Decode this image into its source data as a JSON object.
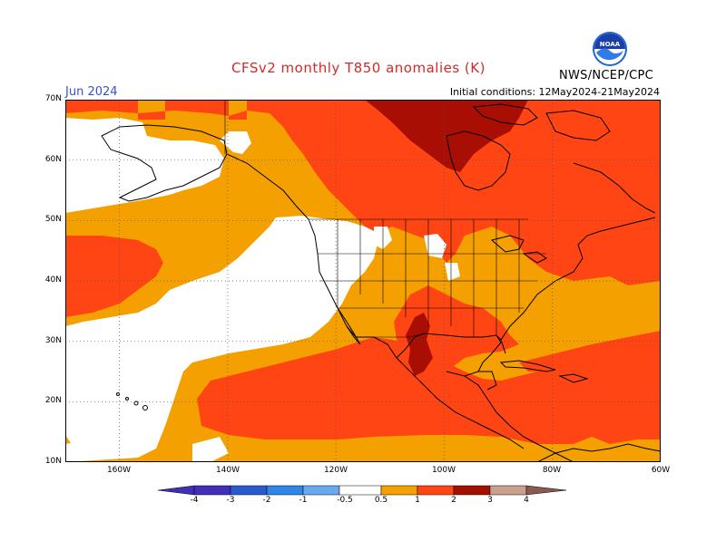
{
  "title": "CFSv2 monthly T850 anomalies (K)",
  "valid_month": "Jun 2024",
  "initial_conditions": "Initial conditions: 12May2024-21May2024",
  "agency": "NWS/NCEP/CPC",
  "logo_text": "NOAA",
  "map": {
    "lat_labels": [
      "70N",
      "60N",
      "50N",
      "40N",
      "30N",
      "20N",
      "10N"
    ],
    "lon_labels": [
      "160W",
      "140W",
      "120W",
      "100W",
      "80W",
      "60W"
    ],
    "lat_range": [
      10,
      70
    ],
    "lon_range": [
      -170,
      -60
    ]
  },
  "colorbar": {
    "labels": [
      "-4",
      "-3",
      "-2",
      "-1",
      "-0.5",
      "0.5",
      "1",
      "2",
      "3",
      "4"
    ],
    "colors": [
      "#4030b8",
      "#2a5ad0",
      "#2f86e6",
      "#6aa8f0",
      "#ffffff",
      "#f4a000",
      "#ff4513",
      "#d01f00",
      "#a31000",
      "#c9a08c",
      "#8a5a50"
    ]
  },
  "colors": {
    "lt_half": "#ffffff",
    "half_to_1": "#f4a000",
    "one_to_2": "#ff4513",
    "two_to_3": "#a80e04",
    "title_red": "#d22a2a",
    "month_blue": "#3a4fd0"
  }
}
